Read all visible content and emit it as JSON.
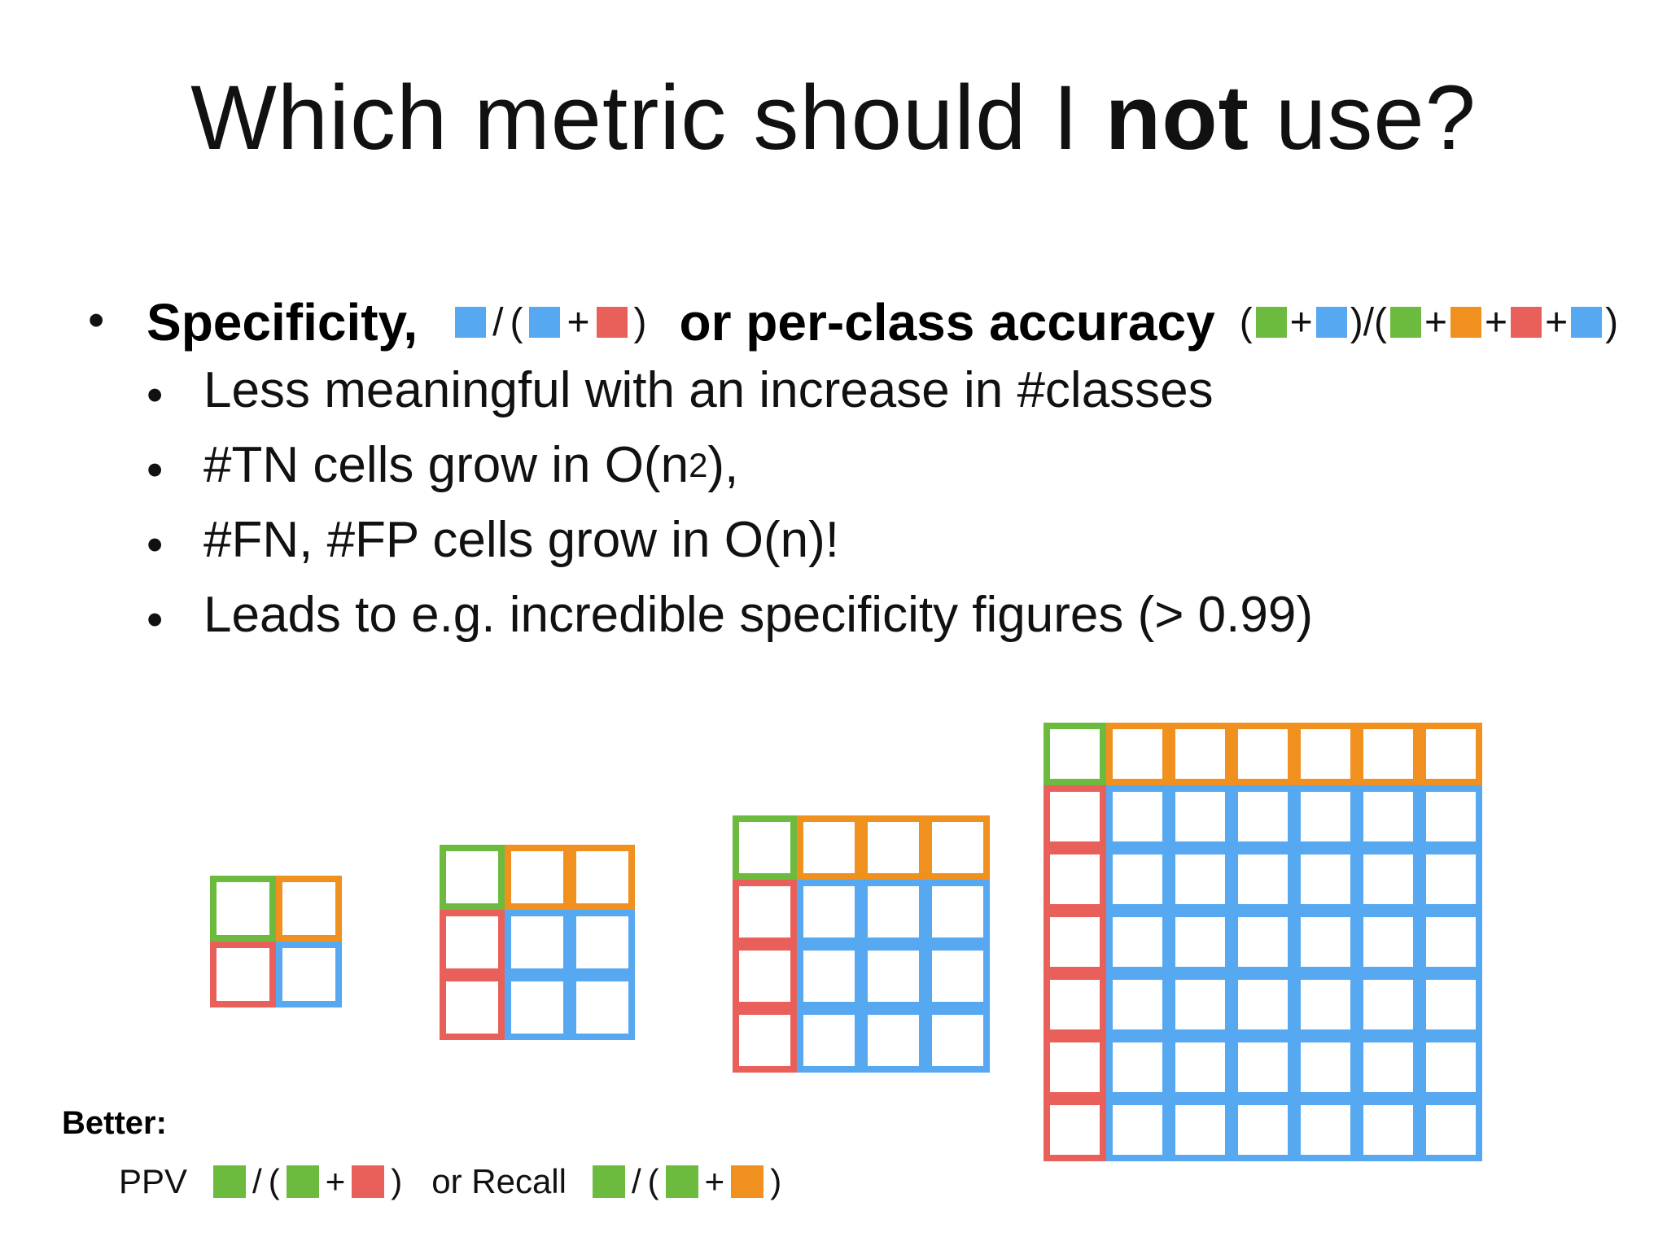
{
  "slide": {
    "title_pre": "Which metric should I ",
    "title_bold": "not",
    "title_post": " use?"
  },
  "bullets": {
    "main_spec": "Specificity,",
    "main_acc": "or per-class accuracy",
    "sub": [
      "Less meaningful with an increase in #classes",
      "#TN cells grow in O(n",
      "2",
      "),",
      "#FN, #FP cells grow in O(n)!",
      "Leads to e.g. incredible specificity figures (> 0.99)"
    ],
    "bullet_char": "•"
  },
  "formula": {
    "slash": "/",
    "open": "(",
    "close": ")",
    "plus": "+",
    "close_slash_open": ")/("
  },
  "better": {
    "label": "Better:",
    "ppv": "PPV",
    "or_recall": "or Recall"
  },
  "matrices": [
    2,
    3,
    4,
    7
  ],
  "colors": {
    "green": "#6dbb3e",
    "orange": "#f0901e",
    "red": "#e9605a",
    "blue": "#56a8f0"
  }
}
